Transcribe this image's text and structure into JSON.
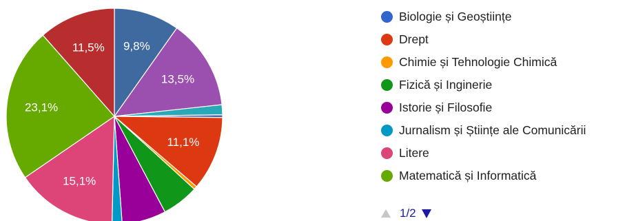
{
  "chart_data": {
    "type": "pie",
    "title": "",
    "slices": [
      {
        "label": "Biologie și Geoștiințe",
        "value": 9.8,
        "value_label": "9,8%",
        "color": "#3f6aa0"
      },
      {
        "label": "",
        "value": 13.5,
        "value_label": "13,5%",
        "color": "#9b4fae"
      },
      {
        "label": "",
        "value": 1.5,
        "value_label": "",
        "color": "#29a9b8"
      },
      {
        "label": "",
        "value": 0.4,
        "value_label": "",
        "color": "#4b62a8"
      },
      {
        "label": "Drept",
        "value": 11.1,
        "value_label": "11,1%",
        "color": "#dc3912"
      },
      {
        "label": "Chimie și Tehnologie Chimică",
        "value": 0.5,
        "value_label": "",
        "color": "#ff9900"
      },
      {
        "label": "Fizică și Inginerie",
        "value": 5.5,
        "value_label": "",
        "color": "#109618"
      },
      {
        "label": "Istorie și Filosofie",
        "value": 6.6,
        "value_label": "",
        "color": "#990099"
      },
      {
        "label": "Jurnalism și Științe ale Comunicării",
        "value": 1.5,
        "value_label": "",
        "color": "#0099c6"
      },
      {
        "label": "Litere",
        "value": 15.1,
        "value_label": "15,1%",
        "color": "#dd4477"
      },
      {
        "label": "Matematică și Informatică",
        "value": 23.1,
        "value_label": "23,1%",
        "color": "#66aa00"
      },
      {
        "label": "",
        "value": 11.5,
        "value_label": "11,5%",
        "color": "#b82e2e"
      }
    ]
  },
  "legend": {
    "items": [
      {
        "label": "Biologie și Geoștiințe",
        "color": "#3366cc"
      },
      {
        "label": "Drept",
        "color": "#dc3912"
      },
      {
        "label": "Chimie și Tehnologie Chimică",
        "color": "#ff9900"
      },
      {
        "label": "Fizică și Inginerie",
        "color": "#109618"
      },
      {
        "label": "Istorie și Filosofie",
        "color": "#990099"
      },
      {
        "label": "Jurnalism și Științe ale Comunicării",
        "color": "#0099c6"
      },
      {
        "label": "Litere",
        "color": "#dd4477"
      },
      {
        "label": "Matematică și Informatică",
        "color": "#66aa00"
      }
    ]
  },
  "pager": {
    "label": "1/2",
    "prev_icon": "triangle-up-icon",
    "next_icon": "triangle-down-icon"
  }
}
